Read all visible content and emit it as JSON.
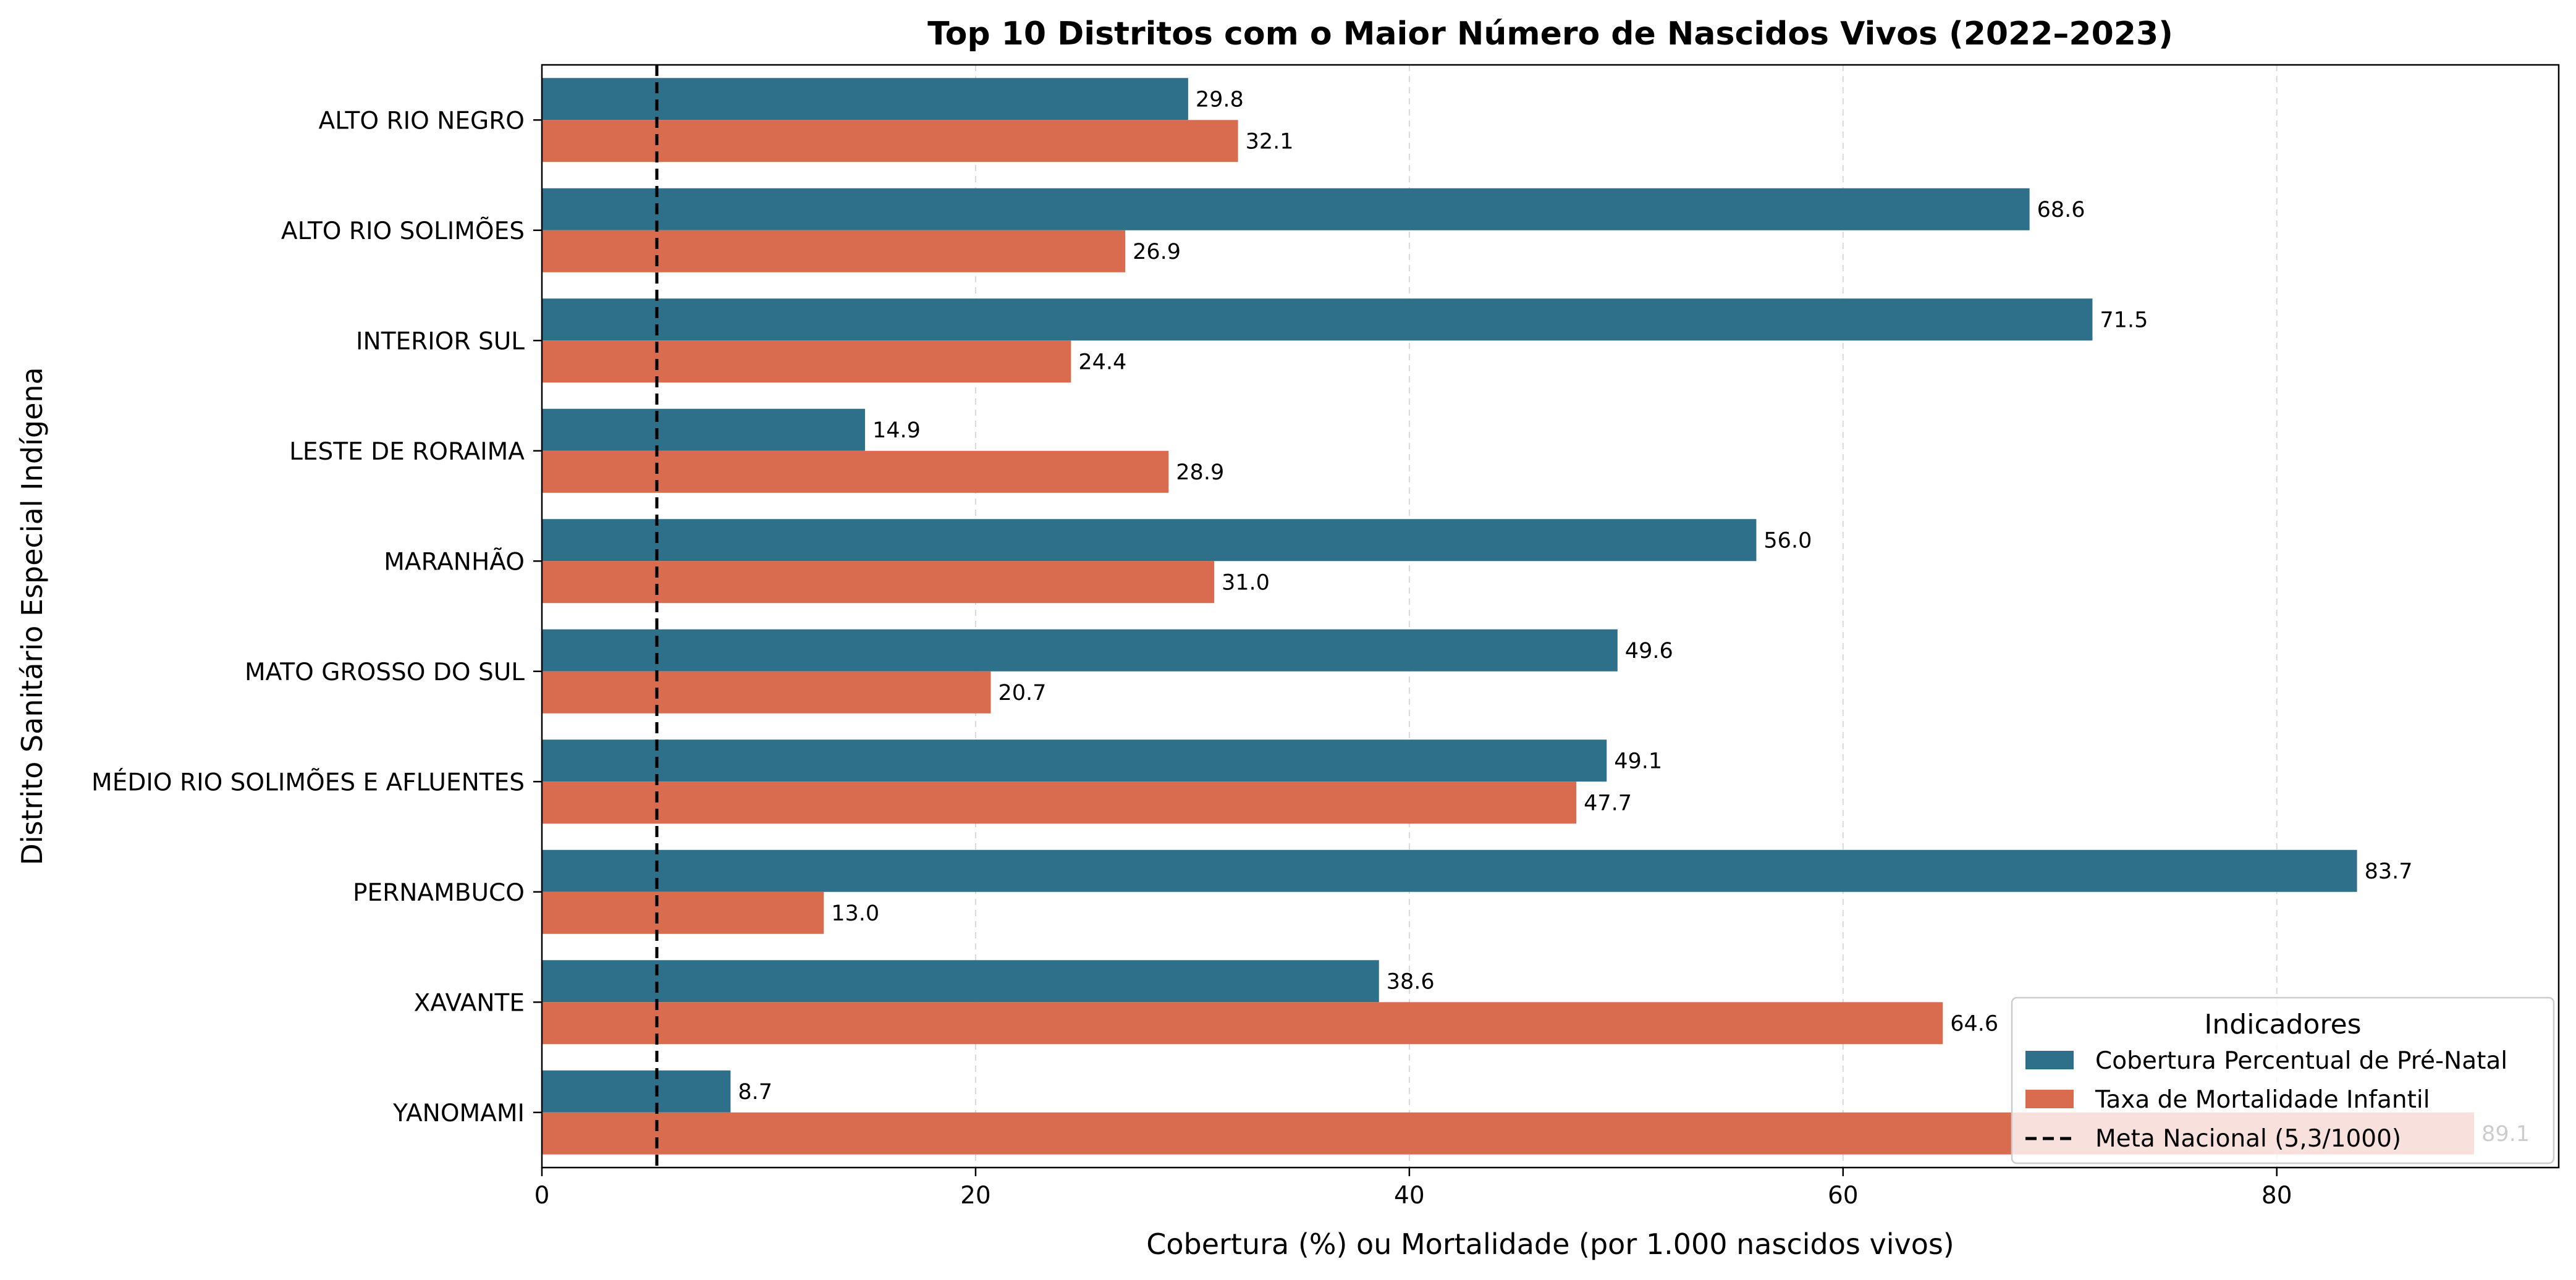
{
  "chart_data": {
    "type": "bar",
    "orientation": "horizontal",
    "title": "Top 10 Distritos com o Maior Número de Nascidos Vivos (2022–2023)",
    "xlabel": "Cobertura (%) ou Mortalidade (por 1.000 nascidos vivos)",
    "ylabel": "Distrito Sanitário Especial Indígena",
    "xlim": [
      0,
      93
    ],
    "xticks": [
      0,
      20,
      40,
      60,
      80
    ],
    "grid": "x-dashed",
    "categories": [
      "ALTO RIO NEGRO",
      "ALTO RIO SOLIMÕES",
      "INTERIOR SUL",
      "LESTE DE RORAIMA",
      "MARANHÃO",
      "MATO GROSSO DO SUL",
      "MÉDIO RIO SOLIMÕES E AFLUENTES",
      "PERNAMBUCO",
      "XAVANTE",
      "YANOMAMI"
    ],
    "series": [
      {
        "name": "Cobertura Percentual de Pré-Natal",
        "color": "#2e7089",
        "values": [
          29.8,
          68.6,
          71.5,
          14.9,
          56.0,
          49.6,
          49.1,
          83.7,
          38.6,
          8.7
        ],
        "labels": [
          "29.8",
          "68.6",
          "71.5",
          "14.9",
          "56.0",
          "49.6",
          "49.1",
          "83.7",
          "38.6",
          "8.7"
        ]
      },
      {
        "name": "Taxa de Mortalidade Infantil",
        "color": "#d96b4f",
        "values": [
          32.1,
          26.9,
          24.4,
          28.9,
          31.0,
          20.7,
          47.7,
          13.0,
          64.6,
          89.1
        ],
        "labels": [
          "32.1",
          "26.9",
          "24.4",
          "28.9",
          "31.0",
          "20.7",
          "47.7",
          "13.0",
          "64.6",
          "89.1"
        ]
      }
    ],
    "reference_line": {
      "name": "Meta Nacional (5,3/1000)",
      "value": 5.3,
      "style": "dashed",
      "color": "#000000"
    },
    "legend": {
      "title": "Indicadores",
      "placement": "lower-right"
    }
  }
}
